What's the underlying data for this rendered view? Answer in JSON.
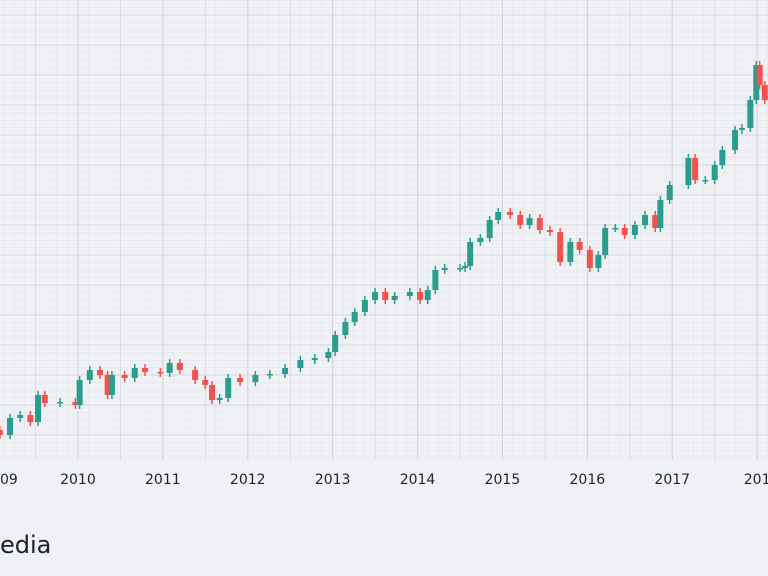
{
  "chart_data": {
    "type": "candlestick",
    "x": [
      2009.08,
      2009.2,
      2009.32,
      2009.44,
      2009.53,
      2009.61,
      2009.79,
      2009.97,
      2010.02,
      2010.14,
      2010.26,
      2010.35,
      2010.4,
      2010.55,
      2010.67,
      2010.79,
      2010.97,
      2011.08,
      2011.2,
      2011.38,
      2011.5,
      2011.58,
      2011.67,
      2011.77,
      2011.91,
      2012.09,
      2012.26,
      2012.44,
      2012.62,
      2012.79,
      2012.95,
      2013.03,
      2013.15,
      2013.26,
      2013.38,
      2013.5,
      2013.62,
      2013.73,
      2013.91,
      2014.03,
      2014.12,
      2014.21,
      2014.32,
      2014.5,
      2014.56,
      2014.62,
      2014.74,
      2014.85,
      2014.95,
      2015.09,
      2015.21,
      2015.32,
      2015.44,
      2015.56,
      2015.68,
      2015.8,
      2015.91,
      2016.03,
      2016.13,
      2016.21,
      2016.33,
      2016.44,
      2016.56,
      2016.68,
      2016.8,
      2016.86,
      2016.97,
      2017.19,
      2017.27,
      2017.39,
      2017.5,
      2017.59,
      2017.74,
      2017.82,
      2017.92,
      2017.99,
      2018.03,
      2018.09
    ],
    "open": [
      30,
      25,
      42,
      45,
      38,
      65,
      57,
      58,
      55,
      80,
      90,
      85,
      65,
      85,
      82,
      92,
      88,
      87,
      97,
      90,
      80,
      75,
      60,
      62,
      82,
      78,
      85,
      86,
      92,
      100,
      102,
      108,
      125,
      138,
      148,
      160,
      168,
      160,
      164,
      168,
      160,
      170,
      190,
      192,
      192,
      194,
      218,
      222,
      240,
      248,
      245,
      235,
      242,
      230,
      228,
      198,
      218,
      210,
      192,
      205,
      232,
      232,
      225,
      235,
      245,
      232,
      260,
      275,
      302,
      280,
      280,
      295,
      310,
      330,
      332,
      360,
      395,
      375
    ],
    "high": [
      34,
      46,
      49,
      49,
      69,
      69,
      62,
      62,
      84,
      94,
      94,
      89,
      89,
      89,
      96,
      96,
      92,
      101,
      101,
      94,
      84,
      79,
      66,
      86,
      86,
      89,
      90,
      96,
      104,
      106,
      112,
      129,
      142,
      152,
      164,
      172,
      172,
      168,
      172,
      172,
      174,
      194,
      196,
      196,
      198,
      222,
      226,
      244,
      252,
      252,
      249,
      246,
      246,
      234,
      232,
      222,
      222,
      214,
      209,
      236,
      236,
      236,
      239,
      249,
      249,
      264,
      279,
      306,
      306,
      284,
      299,
      314,
      334,
      336,
      364,
      399,
      399,
      379
    ],
    "low": [
      21,
      21,
      38,
      34,
      34,
      53,
      53,
      51,
      51,
      76,
      81,
      61,
      61,
      78,
      78,
      84,
      83,
      83,
      86,
      76,
      71,
      56,
      56,
      58,
      74,
      74,
      81,
      82,
      88,
      96,
      98,
      104,
      121,
      134,
      144,
      156,
      156,
      156,
      160,
      156,
      156,
      166,
      186,
      188,
      188,
      190,
      214,
      218,
      236,
      241,
      231,
      231,
      226,
      224,
      194,
      194,
      206,
      188,
      188,
      201,
      228,
      221,
      221,
      231,
      228,
      228,
      256,
      271,
      276,
      276,
      276,
      291,
      306,
      326,
      328,
      356,
      371,
      356
    ],
    "close": [
      25,
      42,
      45,
      38,
      65,
      57,
      58,
      55,
      80,
      90,
      85,
      65,
      85,
      82,
      92,
      88,
      87,
      97,
      90,
      80,
      75,
      60,
      62,
      82,
      78,
      85,
      86,
      92,
      100,
      102,
      108,
      125,
      138,
      148,
      160,
      168,
      160,
      164,
      168,
      160,
      170,
      190,
      192,
      192,
      194,
      218,
      222,
      240,
      248,
      245,
      235,
      242,
      230,
      228,
      198,
      218,
      210,
      192,
      205,
      232,
      232,
      225,
      235,
      245,
      232,
      260,
      275,
      302,
      280,
      280,
      295,
      310,
      330,
      332,
      360,
      395,
      375,
      360
    ],
    "up_color": "#2a9d8f",
    "down_color": "#ef5350",
    "xlim": [
      2009.082,
      2018.128
    ],
    "xticks": [
      {
        "value": 2009,
        "label": "09"
      },
      2010,
      2011,
      2012,
      2013,
      2014,
      2015,
      2016,
      2017,
      {
        "value": 2018,
        "label": "201"
      }
    ],
    "ylim": [
      0,
      460
    ],
    "yticks": [
      25,
      55,
      85,
      115,
      145,
      175,
      205,
      235,
      265,
      295,
      325,
      355,
      385,
      415,
      445
    ],
    "grid": true
  },
  "footer": {
    "text": "edia"
  }
}
